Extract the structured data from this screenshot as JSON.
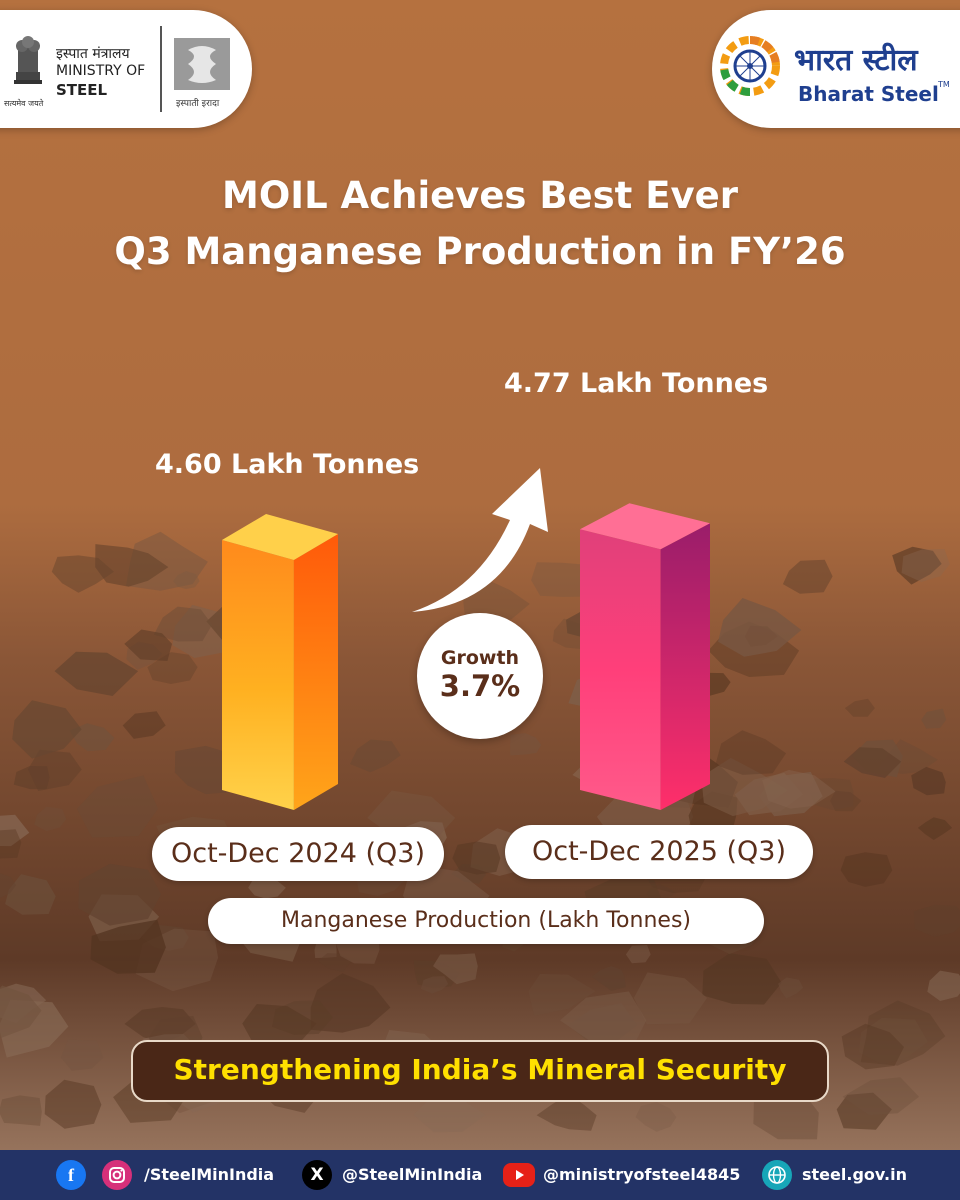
{
  "header": {
    "ministry_hindi": "इस्पात मंत्रालय",
    "ministry_line1": "MINISTRY OF",
    "ministry_line2": "STEEL",
    "emblem_motto": "सत्यमेव जयते",
    "iron_logo_caption": "इस्पाती इरादा",
    "bharat_steel_hindi": "भारत स्टील",
    "bharat_steel_en": "Bharat Steel",
    "tm": "TM"
  },
  "headline": {
    "line1": "MOIL Achieves Best Ever",
    "line2": "Q3 Manganese Production in FY’26"
  },
  "chart_data": {
    "type": "bar",
    "categories": [
      "Oct-Dec 2024 (Q3)",
      "Oct-Dec 2025 (Q3)"
    ],
    "values": [
      4.6,
      4.77
    ],
    "value_labels": [
      "4.60 Lakh Tonnes",
      "4.77 Lakh Tonnes"
    ],
    "xlabel": "Manganese Production (Lakh Tonnes)",
    "ylabel": "",
    "colors": [
      "#ff9a1a",
      "#ff3b7a"
    ],
    "annotation": {
      "label": "Growth",
      "value": "3.7%"
    }
  },
  "banner": {
    "text": "Strengthening India’s Mineral Security"
  },
  "footer": {
    "handle_fb_ig": "/SteelMinIndia",
    "handle_x": "@SteelMinIndia",
    "handle_youtube": "@ministryofsteel4845",
    "website": "steel.gov.in",
    "icons": [
      "facebook-icon",
      "instagram-icon",
      "x-icon",
      "youtube-icon",
      "globe-icon"
    ]
  }
}
